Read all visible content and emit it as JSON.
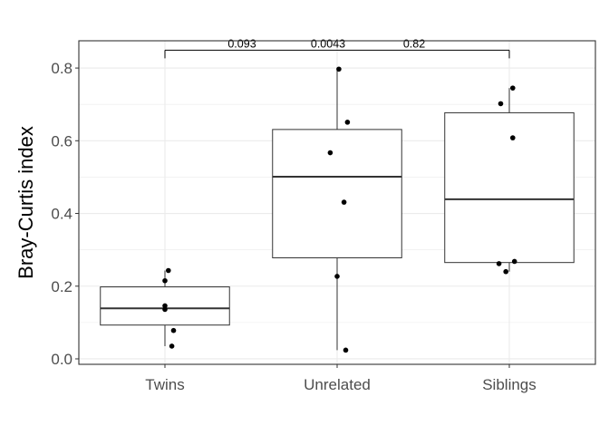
{
  "chart_data": {
    "type": "box",
    "title": "",
    "xlabel": "",
    "ylabel": "Bray-Curtis index",
    "ylim": [
      -0.015,
      0.875
    ],
    "yticks": [
      0.0,
      0.2,
      0.4,
      0.6,
      0.8
    ],
    "ytick_labels": [
      "0.0",
      "0.2",
      "0.4",
      "0.6",
      "0.8"
    ],
    "grid": true,
    "categories": [
      "Twins",
      "Unrelated",
      "Siblings"
    ],
    "boxes": [
      {
        "category": "Twins",
        "min": 0.035,
        "q1": 0.093,
        "median": 0.139,
        "q3": 0.198,
        "max": 0.243
      },
      {
        "category": "Unrelated",
        "min": 0.024,
        "q1": 0.278,
        "median": 0.501,
        "q3": 0.631,
        "max": 0.797
      },
      {
        "category": "Siblings",
        "min": 0.24,
        "q1": 0.265,
        "median": 0.439,
        "q3": 0.677,
        "max": 0.745
      }
    ],
    "points": [
      {
        "category": "Twins",
        "jitter": 0.02,
        "y": 0.243
      },
      {
        "category": "Twins",
        "jitter": 0.0,
        "y": 0.215
      },
      {
        "category": "Twins",
        "jitter": 0.0,
        "y": 0.146
      },
      {
        "category": "Twins",
        "jitter": 0.0,
        "y": 0.136
      },
      {
        "category": "Twins",
        "jitter": 0.05,
        "y": 0.078
      },
      {
        "category": "Twins",
        "jitter": 0.04,
        "y": 0.035
      },
      {
        "category": "Unrelated",
        "jitter": 0.01,
        "y": 0.797
      },
      {
        "category": "Unrelated",
        "jitter": 0.06,
        "y": 0.651
      },
      {
        "category": "Unrelated",
        "jitter": -0.04,
        "y": 0.567
      },
      {
        "category": "Unrelated",
        "jitter": 0.04,
        "y": 0.431
      },
      {
        "category": "Unrelated",
        "jitter": 0.0,
        "y": 0.227
      },
      {
        "category": "Unrelated",
        "jitter": 0.05,
        "y": 0.024
      },
      {
        "category": "Siblings",
        "jitter": 0.02,
        "y": 0.745
      },
      {
        "category": "Siblings",
        "jitter": -0.05,
        "y": 0.702
      },
      {
        "category": "Siblings",
        "jitter": 0.02,
        "y": 0.608
      },
      {
        "category": "Siblings",
        "jitter": 0.03,
        "y": 0.268
      },
      {
        "category": "Siblings",
        "jitter": -0.06,
        "y": 0.262
      },
      {
        "category": "Siblings",
        "jitter": -0.02,
        "y": 0.24
      }
    ],
    "comparisons": [
      {
        "label": "0.093",
        "from": "Twins",
        "to": "Unrelated"
      },
      {
        "label": "0.0043",
        "from": "Twins",
        "to": "Siblings"
      },
      {
        "label": "0.82",
        "from": "Unrelated",
        "to": "Siblings"
      }
    ],
    "colors": {
      "box_outline": "#333333",
      "point": "#000000",
      "grid": "#ebebeb",
      "panel_border": "#333333"
    }
  }
}
